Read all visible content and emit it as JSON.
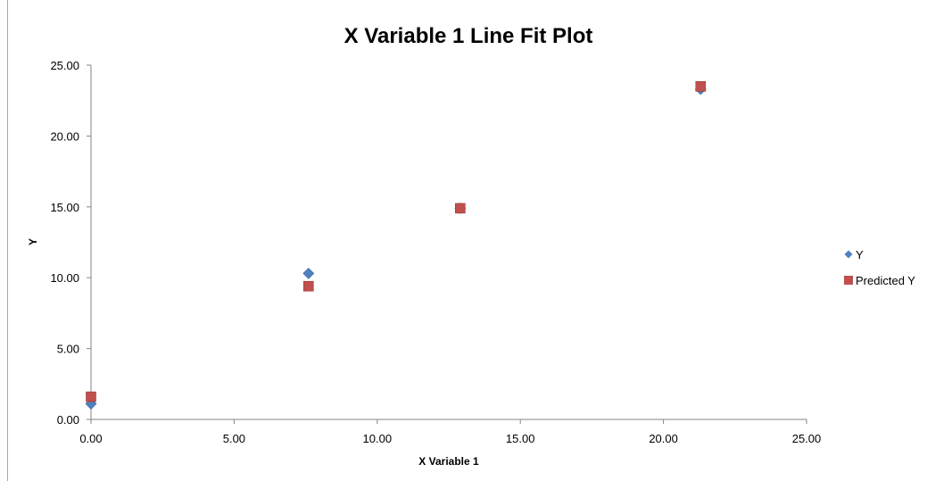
{
  "chart_data": {
    "type": "scatter",
    "title": "X Variable 1 Line Fit  Plot",
    "xlabel": "X Variable 1",
    "ylabel": "Y",
    "xlim": [
      0,
      25
    ],
    "ylim": [
      0,
      25
    ],
    "x_ticks": [
      "0.00",
      "5.00",
      "10.00",
      "15.00",
      "20.00",
      "25.00"
    ],
    "y_ticks": [
      "0.00",
      "5.00",
      "10.00",
      "15.00",
      "20.00",
      "25.00"
    ],
    "grid": false,
    "legend_position": "right",
    "series": [
      {
        "name": "Y",
        "marker": "diamond",
        "color": "#4f81bd",
        "points": [
          {
            "x": 0.0,
            "y": 1.1
          },
          {
            "x": 7.6,
            "y": 10.3
          },
          {
            "x": 12.9,
            "y": 14.9
          },
          {
            "x": 21.3,
            "y": 23.3
          }
        ]
      },
      {
        "name": "Predicted Y",
        "marker": "square",
        "color": "#c0504d",
        "points": [
          {
            "x": 0.0,
            "y": 1.6
          },
          {
            "x": 7.6,
            "y": 9.4
          },
          {
            "x": 12.9,
            "y": 14.9
          },
          {
            "x": 21.3,
            "y": 23.5
          }
        ]
      }
    ]
  }
}
